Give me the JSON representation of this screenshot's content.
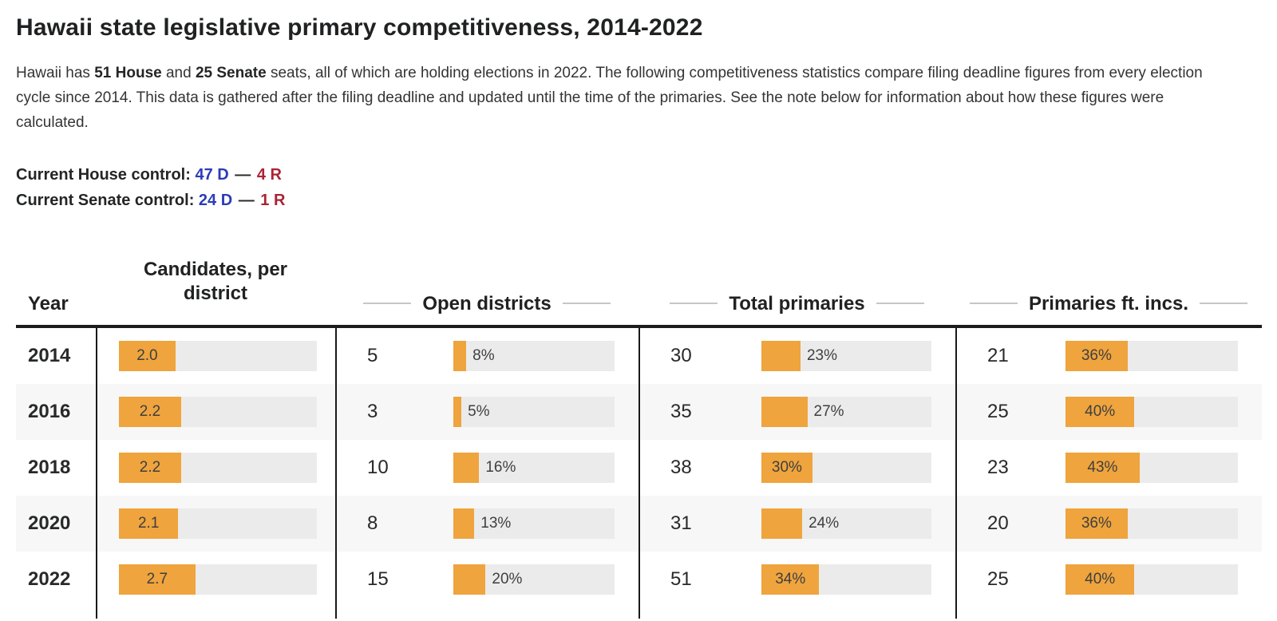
{
  "title": "Hawaii state legislative primary competitiveness, 2014-2022",
  "intro": {
    "part1": "Hawaii has ",
    "bold1": "51 House",
    "part2": " and ",
    "bold2": "25 Senate",
    "part3": " seats, all of which are holding elections in 2022. The following competitiveness statistics compare filing deadline figures from every election cycle since 2014. This data is gathered after the filing deadline and updated until the time of the primaries. See the note below for information about how these figures were calculated."
  },
  "control": {
    "house": {
      "label": "Current House control:",
      "dem": "47 D",
      "dash": "—",
      "rep": "4 R"
    },
    "senate": {
      "label": "Current Senate control:",
      "dem": "24 D",
      "dash": "—",
      "rep": "1 R"
    }
  },
  "colors": {
    "accent_orange": "#efa43d",
    "dem_blue": "#2b3db8",
    "rep_red": "#ab2334",
    "track_gray": "#ebebeb"
  },
  "table": {
    "headers": {
      "year": "Year",
      "candidates": "Candidates, per district",
      "open": "Open districts",
      "total": "Total primaries",
      "incs": "Primaries ft. incs."
    }
  },
  "chart_data": {
    "type": "table",
    "title": "Hawaii state legislative primary competitiveness, 2014-2022",
    "columns": [
      "Year",
      "Candidates, per district",
      "Open districts",
      "Total primaries",
      "Primaries ft. incs."
    ],
    "bar_style": "horizontal orange bars on gray tracks; percent bars scaled 0-100%, candidates bar scaled to max 7",
    "candidates_bar_max": 7,
    "inside_label_threshold_pct": 30,
    "rows": [
      {
        "year": "2014",
        "candidates_per_district": 2.0,
        "open_districts": {
          "count": 5,
          "pct": 8
        },
        "total_primaries": {
          "count": 30,
          "pct": 23
        },
        "primaries_ft_incs": {
          "count": 21,
          "pct": 36
        }
      },
      {
        "year": "2016",
        "candidates_per_district": 2.2,
        "open_districts": {
          "count": 3,
          "pct": 5
        },
        "total_primaries": {
          "count": 35,
          "pct": 27
        },
        "primaries_ft_incs": {
          "count": 25,
          "pct": 40
        }
      },
      {
        "year": "2018",
        "candidates_per_district": 2.2,
        "open_districts": {
          "count": 10,
          "pct": 16
        },
        "total_primaries": {
          "count": 38,
          "pct": 30
        },
        "primaries_ft_incs": {
          "count": 23,
          "pct": 43
        }
      },
      {
        "year": "2020",
        "candidates_per_district": 2.1,
        "open_districts": {
          "count": 8,
          "pct": 13
        },
        "total_primaries": {
          "count": 31,
          "pct": 24
        },
        "primaries_ft_incs": {
          "count": 20,
          "pct": 36
        }
      },
      {
        "year": "2022",
        "candidates_per_district": 2.7,
        "open_districts": {
          "count": 15,
          "pct": 20
        },
        "total_primaries": {
          "count": 51,
          "pct": 34
        },
        "primaries_ft_incs": {
          "count": 25,
          "pct": 40
        }
      }
    ]
  }
}
